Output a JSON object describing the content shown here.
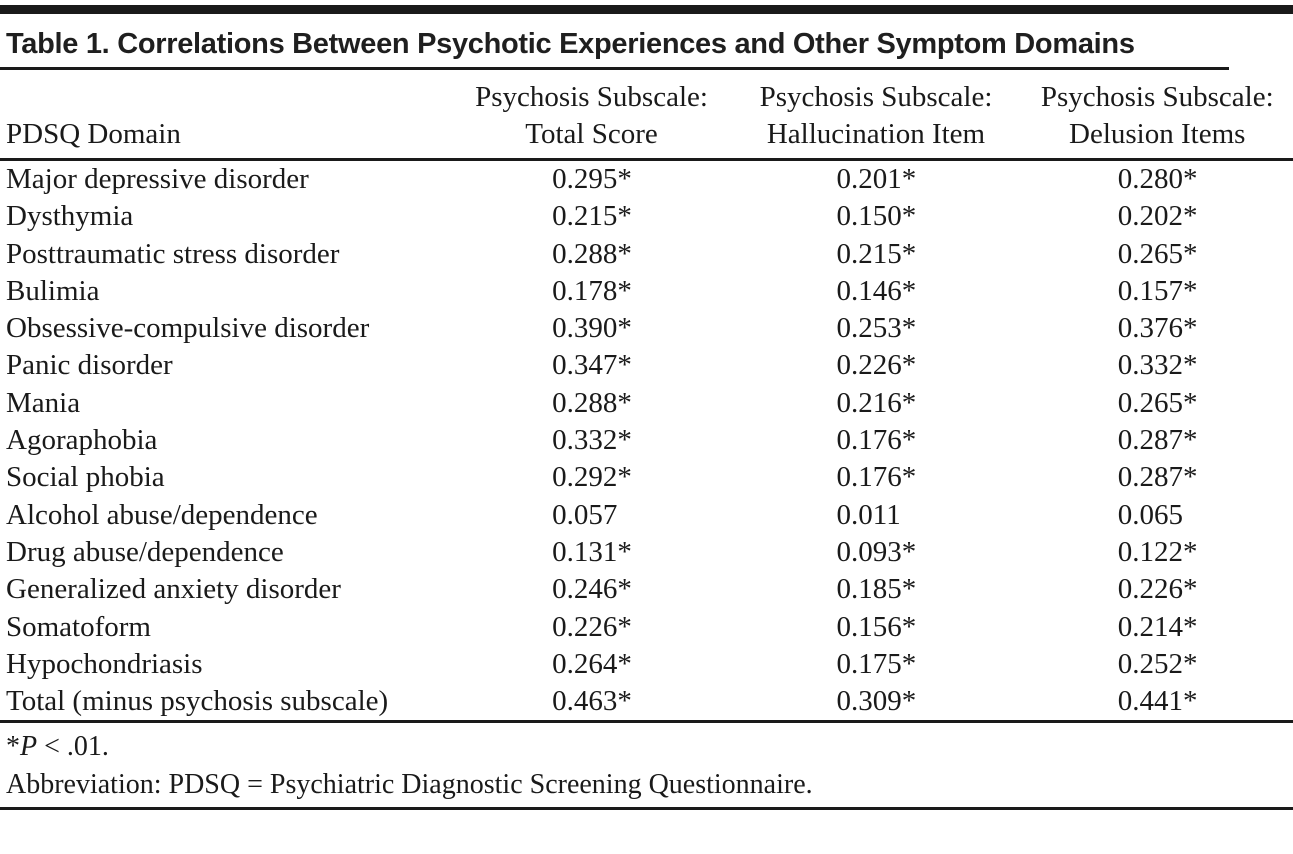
{
  "colors": {
    "text": "#1a1a1a",
    "rule": "#1a1a1a",
    "top_bar": "#1a1a1a",
    "background": "#ffffff"
  },
  "table": {
    "title": "Table 1. Correlations Between Psychotic Experiences and Other Symptom Domains",
    "columns": {
      "domain_header": "PDSQ Domain",
      "total_score": {
        "line1": "Psychosis Subscale:",
        "line2": "Total Score"
      },
      "hallucination": {
        "line1": "Psychosis Subscale:",
        "line2": "Hallucination Item"
      },
      "delusion": {
        "line1": "Psychosis Subscale:",
        "line2": "Delusion Items"
      }
    },
    "rows": [
      {
        "domain": "Major depressive disorder",
        "total_score": "0.295*",
        "hallucination": "0.201*",
        "delusion": "0.280*"
      },
      {
        "domain": "Dysthymia",
        "total_score": "0.215*",
        "hallucination": "0.150*",
        "delusion": "0.202*"
      },
      {
        "domain": "Posttraumatic stress disorder",
        "total_score": "0.288*",
        "hallucination": "0.215*",
        "delusion": "0.265*"
      },
      {
        "domain": "Bulimia",
        "total_score": "0.178*",
        "hallucination": "0.146*",
        "delusion": "0.157*"
      },
      {
        "domain": "Obsessive-compulsive disorder",
        "total_score": "0.390*",
        "hallucination": "0.253*",
        "delusion": "0.376*"
      },
      {
        "domain": "Panic disorder",
        "total_score": "0.347*",
        "hallucination": "0.226*",
        "delusion": "0.332*"
      },
      {
        "domain": "Mania",
        "total_score": "0.288*",
        "hallucination": "0.216*",
        "delusion": "0.265*"
      },
      {
        "domain": "Agoraphobia",
        "total_score": "0.332*",
        "hallucination": "0.176*",
        "delusion": "0.287*"
      },
      {
        "domain": "Social phobia",
        "total_score": "0.292*",
        "hallucination": "0.176*",
        "delusion": "0.287*"
      },
      {
        "domain": "Alcohol abuse/dependence",
        "total_score": "0.057",
        "hallucination": "0.011",
        "delusion": "0.065"
      },
      {
        "domain": "Drug abuse/dependence",
        "total_score": "0.131*",
        "hallucination": "0.093*",
        "delusion": "0.122*"
      },
      {
        "domain": "Generalized anxiety disorder",
        "total_score": "0.246*",
        "hallucination": "0.185*",
        "delusion": "0.226*"
      },
      {
        "domain": "Somatoform",
        "total_score": "0.226*",
        "hallucination": "0.156*",
        "delusion": "0.214*"
      },
      {
        "domain": "Hypochondriasis",
        "total_score": "0.264*",
        "hallucination": "0.175*",
        "delusion": "0.252*"
      },
      {
        "domain": "Total (minus psychosis subscale)",
        "total_score": "0.463*",
        "hallucination": "0.309*",
        "delusion": "0.441*"
      }
    ],
    "footnotes": {
      "significance": {
        "marker": "*",
        "p_symbol": "P",
        "condition": " < .01."
      },
      "abbreviation": "Abbreviation: PDSQ = Psychiatric Diagnostic Screening Questionnaire."
    }
  }
}
